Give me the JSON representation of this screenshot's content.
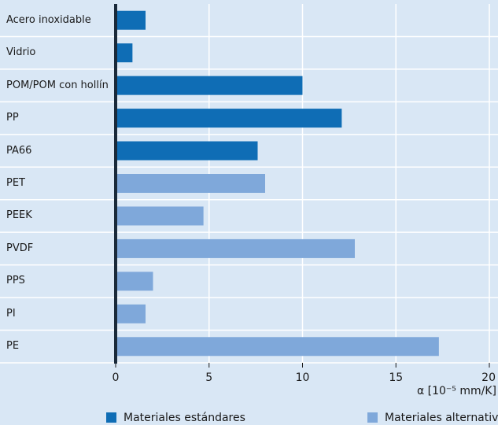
{
  "chart_data": {
    "type": "barh",
    "categories": [
      "Acero inoxidable",
      "Vidrio",
      "POM/POM con hollín",
      "PP",
      "PA66",
      "PET",
      "PEEK",
      "PVDF",
      "PPS",
      "PI",
      "PE"
    ],
    "series": [
      {
        "name": "Materiales estándares",
        "color": "#0f6db5",
        "values": [
          1.6,
          0.9,
          10.0,
          12.1,
          7.6,
          null,
          null,
          null,
          null,
          null,
          null
        ]
      },
      {
        "name": "Materiales alternativos",
        "color": "#7fa8da",
        "values": [
          null,
          null,
          null,
          null,
          null,
          8.0,
          4.7,
          12.8,
          2.0,
          1.6,
          17.3
        ]
      }
    ],
    "xlabel": "α [10⁻⁵ mm/K]",
    "xlim": [
      0,
      20
    ],
    "xticks": [
      0,
      5,
      10,
      15,
      20
    ],
    "grid": true,
    "legend": "bottom"
  }
}
